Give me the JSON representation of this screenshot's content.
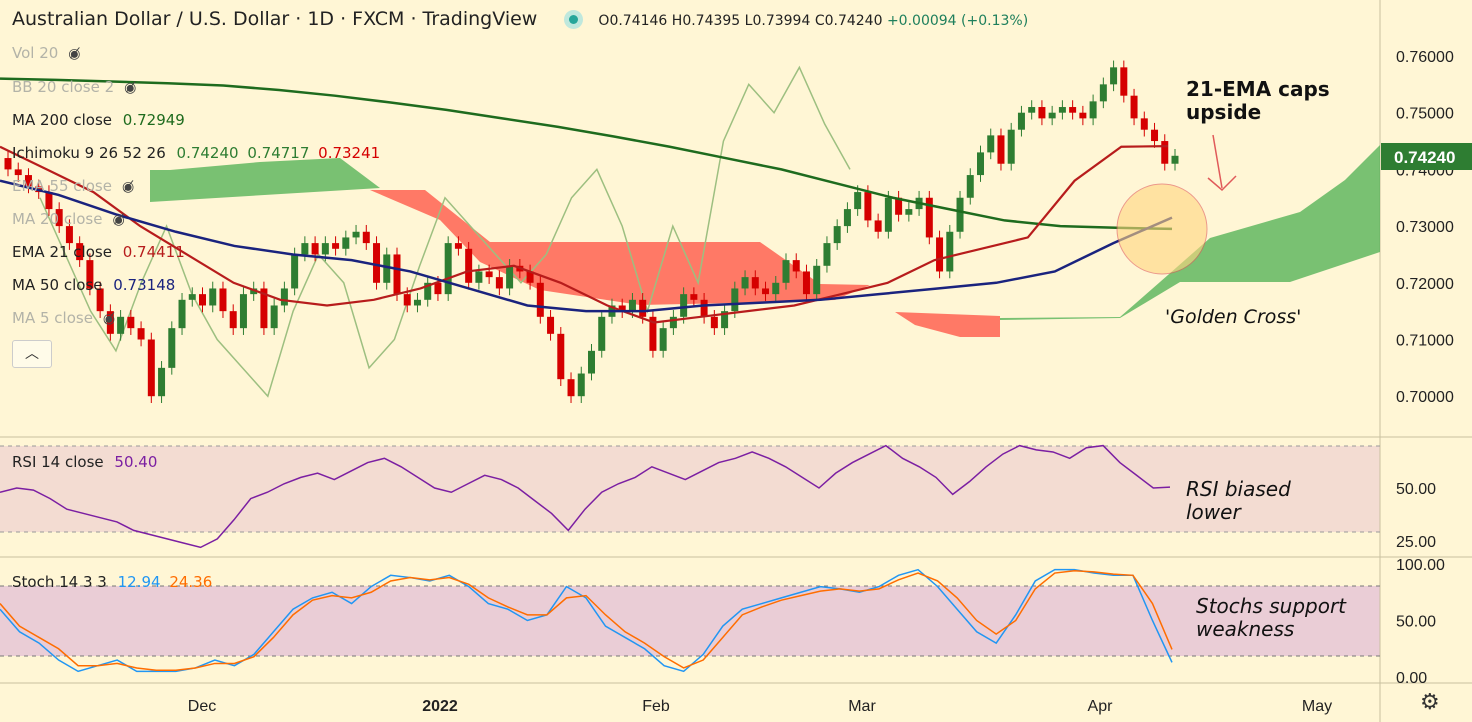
{
  "header": {
    "symbol": "Australian Dollar / U.S. Dollar · 1D · FXCM · TradingView",
    "open": "O0.74146",
    "high": "H0.74395",
    "low": "L0.73994",
    "close": "C0.74240",
    "change": "+0.00094 (+0.13%)"
  },
  "indicators": {
    "vol": "Vol 20",
    "bb": "BB 20 close 2",
    "ma200": {
      "label": "MA 200 close",
      "value": "0.72949",
      "color": "#1e6b1e"
    },
    "ichimoku": {
      "label": "Ichimoku 9 26 52 26",
      "v1": "0.74240",
      "v2": "0.74717",
      "v3": "0.73241"
    },
    "ema55": "EMA 55 close",
    "ma20": "MA 20 close",
    "ema21": {
      "label": "EMA 21 close",
      "value": "0.74411",
      "color": "#b3121c"
    },
    "ma50": {
      "label": "MA 50 close",
      "value": "0.73148",
      "color": "#1a237e"
    },
    "ma5": "MA 5 close",
    "rsi": {
      "label": "RSI 14 close",
      "value": "50.40"
    },
    "stoch": {
      "label": "Stoch 14 3 3",
      "k": "12.94",
      "d": "24.36"
    }
  },
  "annotations": {
    "ema": "21-EMA caps upside",
    "golden": "'Golden Cross'",
    "rsi": "RSI biased lower",
    "stoch": "Stochs support weakness"
  },
  "price_tag": "0.74240",
  "chart_data": [
    {
      "type": "candlestick",
      "title": "Australian Dollar / U.S. Dollar",
      "x_ticks": [
        "Dec",
        "2022",
        "Feb",
        "Mar",
        "Apr",
        "May"
      ],
      "y_ticks": [
        "0.76000",
        "0.75000",
        "0.74000",
        "0.73000",
        "0.72000",
        "0.71000",
        "0.70000"
      ],
      "ylim": [
        0.6925,
        0.7675
      ],
      "closes": [
        0.74,
        0.739,
        0.737,
        0.736,
        0.733,
        0.73,
        0.727,
        0.724,
        0.719,
        0.715,
        0.711,
        0.714,
        0.712,
        0.71,
        0.7,
        0.705,
        0.712,
        0.717,
        0.718,
        0.716,
        0.719,
        0.715,
        0.712,
        0.718,
        0.719,
        0.712,
        0.716,
        0.719,
        0.725,
        0.727,
        0.725,
        0.727,
        0.726,
        0.728,
        0.729,
        0.727,
        0.72,
        0.725,
        0.718,
        0.716,
        0.717,
        0.72,
        0.718,
        0.727,
        0.726,
        0.72,
        0.722,
        0.721,
        0.719,
        0.723,
        0.722,
        0.72,
        0.714,
        0.711,
        0.703,
        0.7,
        0.704,
        0.708,
        0.714,
        0.716,
        0.715,
        0.717,
        0.714,
        0.708,
        0.712,
        0.714,
        0.718,
        0.717,
        0.714,
        0.712,
        0.715,
        0.719,
        0.721,
        0.719,
        0.718,
        0.72,
        0.724,
        0.722,
        0.718,
        0.723,
        0.727,
        0.73,
        0.733,
        0.736,
        0.731,
        0.729,
        0.735,
        0.732,
        0.733,
        0.735,
        0.728,
        0.722,
        0.729,
        0.735,
        0.739,
        0.743,
        0.746,
        0.741,
        0.747,
        0.75,
        0.751,
        0.749,
        0.75,
        0.751,
        0.75,
        0.749,
        0.752,
        0.755,
        0.758,
        0.753,
        0.749,
        0.747,
        0.745,
        0.741,
        0.7424
      ],
      "ma200": [
        0.756,
        0.7558,
        0.7555,
        0.7552,
        0.7548,
        0.754,
        0.753,
        0.7518,
        0.7505,
        0.749,
        0.7475,
        0.7458,
        0.744,
        0.742,
        0.74,
        0.7375,
        0.735,
        0.733,
        0.731,
        0.73,
        0.7297,
        0.7295
      ],
      "ema21": [
        0.744,
        0.74,
        0.736,
        0.73,
        0.725,
        0.72,
        0.717,
        0.716,
        0.717,
        0.719,
        0.722,
        0.723,
        0.72,
        0.716,
        0.713,
        0.714,
        0.715,
        0.716,
        0.718,
        0.72,
        0.724,
        0.726,
        0.728,
        0.738,
        0.744,
        0.7441
      ],
      "ma50": [
        0.738,
        0.7355,
        0.732,
        0.729,
        0.7265,
        0.725,
        0.724,
        0.722,
        0.719,
        0.716,
        0.715,
        0.715,
        0.716,
        0.7165,
        0.717,
        0.718,
        0.719,
        0.72,
        0.722,
        0.727,
        0.7315
      ],
      "ichimoku_lagging": [
        0.735,
        0.725,
        0.715,
        0.708,
        0.72,
        0.73,
        0.718,
        0.71,
        0.705,
        0.7,
        0.715,
        0.725,
        0.72,
        0.705,
        0.71,
        0.723,
        0.735,
        0.73,
        0.725,
        0.72,
        0.725,
        0.735,
        0.74,
        0.73,
        0.715,
        0.73,
        0.72,
        0.745,
        0.755,
        0.75,
        0.758,
        0.748,
        0.74
      ],
      "cloud": {
        "red_segments": "bearish cloud Dec–Feb and mid-March",
        "green_segments": "bullish cloud late Nov and from late March"
      }
    },
    {
      "type": "line",
      "title": "RSI 14 close",
      "y_ticks": [
        "50.00",
        "25.00"
      ],
      "ylim": [
        20,
        75
      ],
      "bands": [
        30,
        70
      ],
      "values": [
        48,
        50,
        49,
        45,
        40,
        38,
        36,
        34,
        30,
        28,
        26,
        24,
        22,
        26,
        35,
        45,
        48,
        52,
        55,
        57,
        54,
        58,
        62,
        64,
        60,
        55,
        50,
        48,
        52,
        56,
        54,
        50,
        44,
        38,
        30,
        40,
        48,
        52,
        55,
        60,
        57,
        54,
        58,
        62,
        64,
        67,
        64,
        60,
        55,
        50,
        57,
        62,
        66,
        70,
        64,
        60,
        55,
        47,
        53,
        60,
        66,
        70,
        68,
        67,
        64,
        69,
        70,
        62,
        56,
        50,
        50.4
      ]
    },
    {
      "type": "line",
      "title": "Stoch 14 3 3",
      "y_ticks": [
        "100.00",
        "50.00",
        "0.00"
      ],
      "ylim": [
        0,
        100
      ],
      "bands": [
        20,
        80
      ],
      "k": [
        60,
        40,
        30,
        15,
        5,
        10,
        15,
        5,
        5,
        5,
        8,
        15,
        10,
        20,
        40,
        60,
        70,
        75,
        65,
        80,
        90,
        88,
        85,
        90,
        80,
        65,
        60,
        50,
        55,
        80,
        70,
        45,
        35,
        25,
        10,
        5,
        20,
        45,
        60,
        65,
        70,
        75,
        80,
        78,
        75,
        80,
        90,
        95,
        80,
        60,
        40,
        30,
        55,
        85,
        95,
        95,
        92,
        90,
        90,
        50,
        12.94
      ],
      "d": [
        65,
        45,
        35,
        25,
        10,
        10,
        12,
        8,
        6,
        6,
        8,
        12,
        12,
        18,
        35,
        55,
        68,
        72,
        70,
        75,
        85,
        88,
        86,
        88,
        82,
        70,
        62,
        55,
        55,
        70,
        72,
        55,
        40,
        30,
        18,
        8,
        15,
        35,
        55,
        62,
        68,
        72,
        76,
        78,
        76,
        78,
        86,
        92,
        85,
        70,
        50,
        38,
        50,
        78,
        92,
        94,
        93,
        91,
        90,
        65,
        24.36
      ]
    }
  ],
  "colors": {
    "bg": "#fff6d5",
    "bull": "#2e7d32",
    "bear": "#d50000",
    "ma200": "#1e6b1e",
    "ema21": "#b71c1c",
    "ma50": "#1a237e",
    "lagging": "#9dbf80",
    "cloud_green": "#4caf50",
    "cloud_red": "#ff5a4a",
    "rsi": "#7b1fa2",
    "stoch_k": "#2196f3",
    "stoch_d": "#ff6d00"
  }
}
